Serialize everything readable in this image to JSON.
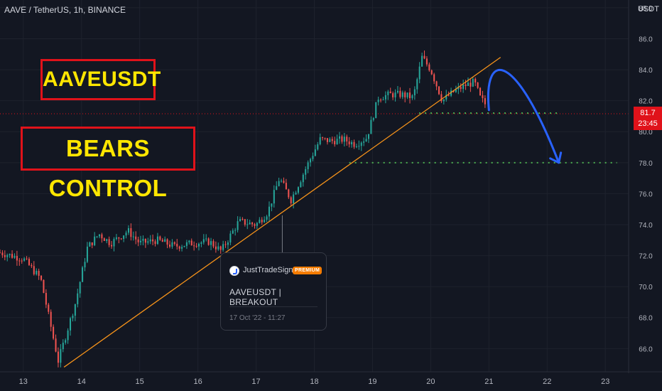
{
  "header": {
    "symbol": "AAVE / TetherUS, 1h, BINANCE",
    "currency": "USDT"
  },
  "annotations": {
    "title": "AAVEUSDT",
    "subtitle": "BEARS CONTROL"
  },
  "price_tag": {
    "price": "81.7",
    "countdown": "23:45"
  },
  "idea_card": {
    "author": "JustTradeSignals",
    "badge": "PREMIUM",
    "title": "AAVEUSDT | BREAKOUT",
    "date": "17 Oct '22 - 11:27"
  },
  "colors": {
    "background": "#131722",
    "up": "#26a69a",
    "down": "#ef5350",
    "trendline": "#f7931a",
    "support": "#4caf50",
    "arrow": "#2962ff",
    "accent_red": "#e0121a",
    "annotation_text": "#ffe600"
  },
  "chart_data": {
    "type": "candlestick",
    "title": "AAVE / TetherUS, 1h, BINANCE",
    "x_ticks": [
      "13",
      "14",
      "15",
      "16",
      "17",
      "18",
      "19",
      "20",
      "21",
      "22",
      "23"
    ],
    "y_ticks": [
      "66.0",
      "68.0",
      "70.0",
      "72.0",
      "74.0",
      "76.0",
      "78.0",
      "80.0",
      "82.0",
      "84.0",
      "86.0",
      "88.0"
    ],
    "ylim": [
      64.5,
      88.5
    ],
    "xlim": [
      12.6,
      23.4
    ],
    "current_price": 81.7,
    "trendline": {
      "from": [
        13.7,
        64.8
      ],
      "to": [
        21.2,
        84.8
      ]
    },
    "support_levels": [
      {
        "price": 81.2,
        "from": 19.8,
        "to": 22.2
      },
      {
        "price": 78.0,
        "from": 18.6,
        "to": 23.2
      }
    ],
    "projection_arrow": {
      "from": [
        21.0,
        81.4
      ],
      "peak": [
        21.1,
        84.0
      ],
      "to": [
        22.2,
        78.0
      ]
    },
    "price_path": [
      [
        12.6,
        72.2
      ],
      [
        13.0,
        71.8
      ],
      [
        13.3,
        70.5
      ],
      [
        13.6,
        65.2
      ],
      [
        13.9,
        69.0
      ],
      [
        14.1,
        72.5
      ],
      [
        14.3,
        73.4
      ],
      [
        14.5,
        72.8
      ],
      [
        14.8,
        73.6
      ],
      [
        15.0,
        72.8
      ],
      [
        15.3,
        73.0
      ],
      [
        15.6,
        72.6
      ],
      [
        15.9,
        72.8
      ],
      [
        16.2,
        72.9
      ],
      [
        16.4,
        72.3
      ],
      [
        16.7,
        74.2
      ],
      [
        17.0,
        74.0
      ],
      [
        17.2,
        74.8
      ],
      [
        17.4,
        77.0
      ],
      [
        17.6,
        75.6
      ],
      [
        17.9,
        78.0
      ],
      [
        18.1,
        79.5
      ],
      [
        18.3,
        79.4
      ],
      [
        18.5,
        79.5
      ],
      [
        18.7,
        79.2
      ],
      [
        18.9,
        79.6
      ],
      [
        19.1,
        82.2
      ],
      [
        19.3,
        82.4
      ],
      [
        19.5,
        82.4
      ],
      [
        19.7,
        82.2
      ],
      [
        19.85,
        84.8
      ],
      [
        20.0,
        84.0
      ],
      [
        20.2,
        82.0
      ],
      [
        20.4,
        82.6
      ],
      [
        20.6,
        83.0
      ],
      [
        20.75,
        83.2
      ],
      [
        20.85,
        82.2
      ],
      [
        20.95,
        81.7
      ]
    ]
  }
}
